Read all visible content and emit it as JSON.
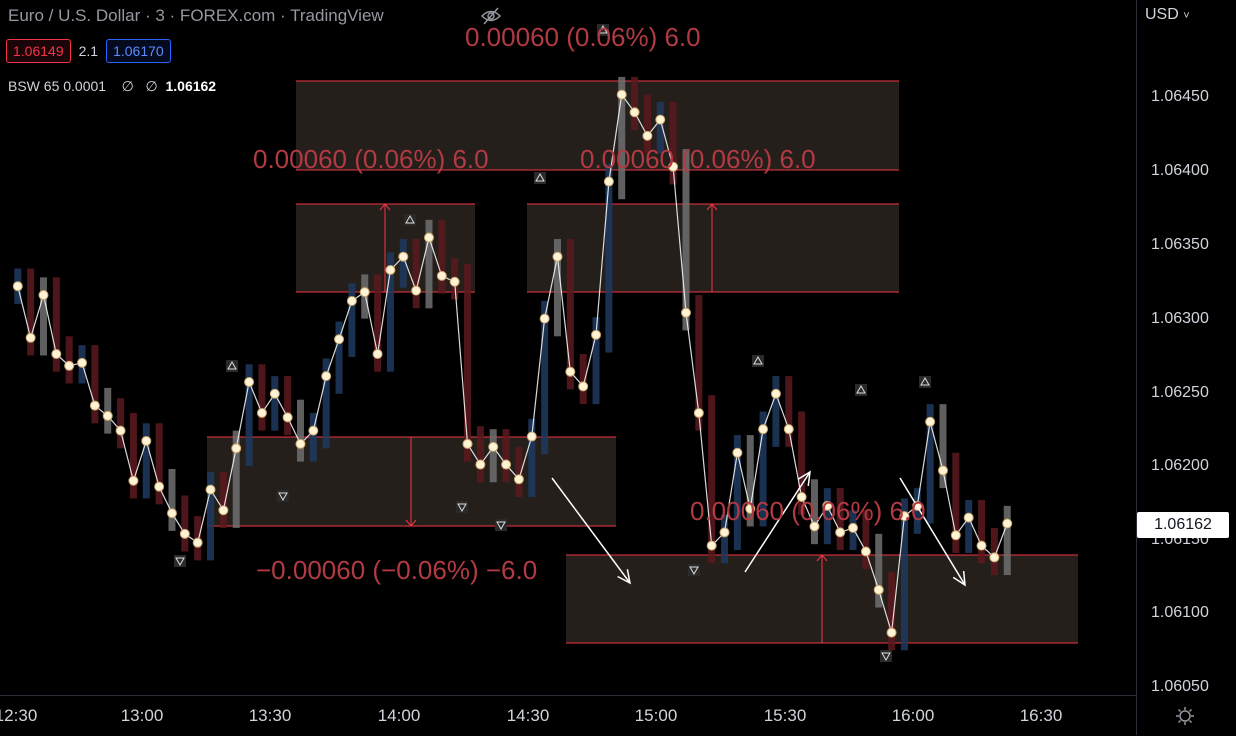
{
  "header": {
    "symbol_title": "Euro / U.S. Dollar · 3 · FOREX.com · TradingView",
    "bid": "1.06149",
    "spread": "2.1",
    "ask": "1.06170",
    "indicator": {
      "name": "BSW 65 0.0001",
      "v1": "∅",
      "v2": "∅",
      "value": "1.06162"
    }
  },
  "price_axis": {
    "currency": "USD",
    "ticks": [
      "1.06450",
      "1.06400",
      "1.06350",
      "1.06300",
      "1.06250",
      "1.06200",
      "1.06150",
      "1.06100",
      "1.06050"
    ],
    "current_price": "1.06162"
  },
  "time_axis": {
    "ticks": [
      "12:30",
      "13:00",
      "13:30",
      "14:00",
      "14:30",
      "15:00",
      "15:30",
      "16:00",
      "16:30"
    ]
  },
  "colors": {
    "background": "#000000",
    "box_border": "#f23645",
    "box_fill": "#2b2420",
    "label": "#b23a43",
    "line": "#ffffff",
    "bull": "#1e3a5f",
    "bear": "#5c1a1e",
    "neutral": "#707070"
  },
  "chart_data": {
    "type": "line",
    "x_label": "",
    "y_label": "",
    "ylim": [
      1.0604,
      1.0648
    ],
    "series": [
      {
        "name": "",
        "x": [
          "12:31",
          "12:34",
          "12:37",
          "12:40",
          "12:43",
          "12:46",
          "12:49",
          "12:52",
          "12:55",
          "12:58",
          "13:01",
          "13:04",
          "13:07",
          "13:10",
          "13:13",
          "13:16",
          "13:19",
          "13:22",
          "13:25",
          "13:28",
          "13:31",
          "13:34",
          "13:37",
          "13:40",
          "13:43",
          "13:46",
          "13:49",
          "13:52",
          "13:55",
          "13:58",
          "14:01",
          "14:04",
          "14:07",
          "14:10",
          "14:13",
          "14:16",
          "14:19",
          "14:22",
          "14:25",
          "14:28",
          "14:31",
          "14:34",
          "14:37",
          "14:40",
          "14:43",
          "14:46",
          "14:49",
          "14:52",
          "14:55",
          "14:58",
          "15:01",
          "15:04",
          "15:07",
          "15:10",
          "15:13",
          "15:16",
          "15:19",
          "15:22",
          "15:25",
          "15:28",
          "15:31",
          "15:34",
          "15:37",
          "15:40",
          "15:43",
          "15:46",
          "15:49",
          "15:52",
          "15:55",
          "15:58",
          "16:01",
          "16:04",
          "16:07",
          "16:10",
          "16:13",
          "16:16",
          "16:19",
          "16:22"
        ],
        "values": [
          1.06323,
          1.06288,
          1.06317,
          1.06277,
          1.06269,
          1.06271,
          1.06242,
          1.06235,
          1.06225,
          1.06191,
          1.06218,
          1.06187,
          1.06169,
          1.06155,
          1.06149,
          1.06185,
          1.06171,
          1.06213,
          1.06258,
          1.06237,
          1.0625,
          1.06234,
          1.06216,
          1.06225,
          1.06262,
          1.06287,
          1.06313,
          1.06319,
          1.06277,
          1.06334,
          1.06343,
          1.0632,
          1.06356,
          1.0633,
          1.06326,
          1.06216,
          1.06202,
          1.06214,
          1.06202,
          1.06192,
          1.06221,
          1.06301,
          1.06343,
          1.06265,
          1.06255,
          1.0629,
          1.06394,
          1.06453,
          1.06441,
          1.06425,
          1.06436,
          1.06404,
          1.06305,
          1.06237,
          1.06147,
          1.06156,
          1.0621,
          1.06172,
          1.06226,
          1.0625,
          1.06226,
          1.0618,
          1.0616,
          1.06174,
          1.06156,
          1.06159,
          1.06143,
          1.06117,
          1.06088,
          1.06167,
          1.06174,
          1.06231,
          1.06198,
          1.06154,
          1.06166,
          1.06147,
          1.06139,
          1.06162
        ]
      }
    ],
    "annotations": [
      {
        "text": "0.00060 (0.06%) 6.0"
      },
      {
        "text": "0.00060 (0.06%) 6.0"
      },
      {
        "text": "0.00060 (0.06%) 6.0"
      },
      {
        "text": "−0.00060 (−0.06%) −6.0"
      },
      {
        "text": "0.00060 (0.06%) 6.0"
      }
    ]
  }
}
